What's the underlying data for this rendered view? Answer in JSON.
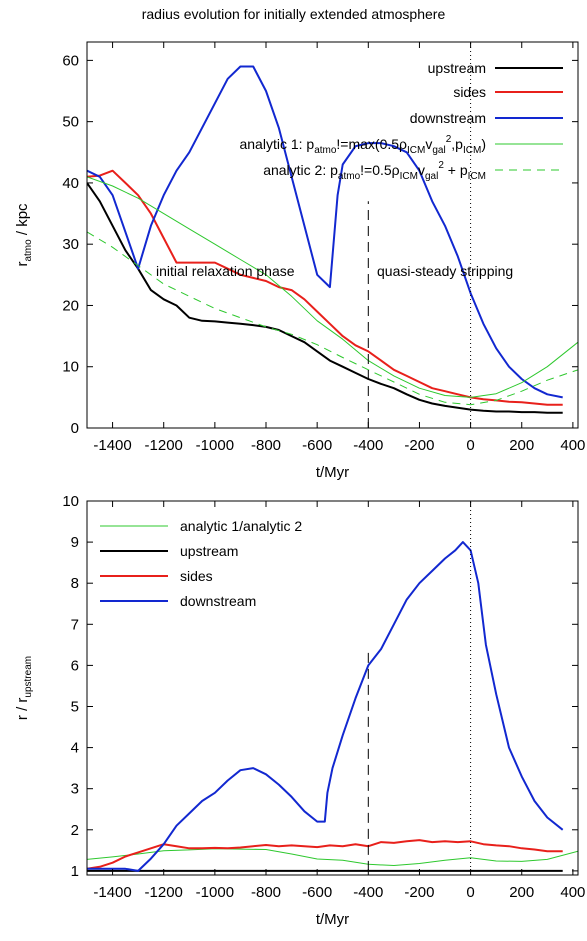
{
  "chart_data": [
    {
      "type": "line",
      "title": "radius evolution for initially extended atmosphere",
      "xlabel": "t/Myr",
      "ylabel": "r_atmo / kpc",
      "ylabel_base": "r",
      "ylabel_sub": "atmo",
      "ylabel_rest": " / kpc",
      "xlim": [
        -1500,
        420
      ],
      "ylim": [
        0,
        63
      ],
      "xticks": [
        -1400,
        -1200,
        -1000,
        -800,
        -600,
        -400,
        -200,
        0,
        200,
        400
      ],
      "xtick_labels": [
        "-1400",
        "-1200",
        "-1000",
        "-800",
        "-600",
        "-400",
        "-200",
        "0",
        "200",
        "400"
      ],
      "yticks": [
        0,
        10,
        20,
        30,
        40,
        50,
        60
      ],
      "ytick_labels": [
        "0",
        "10",
        "20",
        "30",
        "40",
        "50",
        "60"
      ],
      "grid": false,
      "legend_position": "top-right",
      "vlines": [
        {
          "x": -400,
          "y": [
            0,
            37
          ],
          "style": "dashed"
        },
        {
          "x": 0,
          "y": [
            0,
            63
          ],
          "style": "dotted"
        }
      ],
      "annotations": [
        "initial relaxation phase",
        "quasi-steady stripping"
      ],
      "series": [
        {
          "name": "upstream",
          "color": "#000000",
          "width": 2,
          "dash": "",
          "x": [
            -1500,
            -1450,
            -1400,
            -1350,
            -1300,
            -1250,
            -1200,
            -1150,
            -1100,
            -1050,
            -1000,
            -950,
            -900,
            -850,
            -800,
            -750,
            -700,
            -650,
            -600,
            -550,
            -500,
            -450,
            -400,
            -350,
            -300,
            -250,
            -200,
            -150,
            -100,
            -50,
            0,
            50,
            100,
            150,
            200,
            250,
            300,
            360
          ],
          "y": [
            40,
            37,
            33,
            29,
            26,
            22.5,
            21,
            20,
            18,
            17.5,
            17.4,
            17.2,
            17,
            16.8,
            16.5,
            16,
            15,
            14,
            12.5,
            11,
            10,
            9,
            8,
            7.2,
            6.5,
            5.5,
            4.6,
            4,
            3.6,
            3.3,
            3,
            2.8,
            2.7,
            2.7,
            2.6,
            2.6,
            2.5,
            2.5
          ]
        },
        {
          "name": "sides",
          "color": "#e8201b",
          "width": 2,
          "dash": "",
          "x": [
            -1500,
            -1450,
            -1400,
            -1350,
            -1300,
            -1250,
            -1200,
            -1150,
            -1100,
            -1050,
            -1000,
            -950,
            -900,
            -850,
            -800,
            -750,
            -700,
            -650,
            -600,
            -550,
            -500,
            -450,
            -400,
            -350,
            -300,
            -250,
            -200,
            -150,
            -100,
            -50,
            0,
            50,
            100,
            150,
            200,
            250,
            300,
            360
          ],
          "y": [
            41,
            41.2,
            42,
            40,
            38,
            35,
            31,
            27,
            27,
            27,
            27,
            26,
            25,
            24.5,
            24,
            23,
            22.5,
            21,
            19,
            17,
            15,
            13.5,
            12.5,
            11,
            9.5,
            8.5,
            7.5,
            6.5,
            6,
            5.5,
            5,
            4.7,
            4.5,
            4.3,
            4.2,
            4,
            3.8,
            3.8
          ]
        },
        {
          "name": "downstream",
          "color": "#1228d0",
          "width": 2,
          "dash": "",
          "x": [
            -1500,
            -1450,
            -1400,
            -1350,
            -1300,
            -1250,
            -1200,
            -1150,
            -1100,
            -1050,
            -1000,
            -950,
            -900,
            -850,
            -800,
            -750,
            -700,
            -650,
            -600,
            -550,
            -520,
            -500,
            -450,
            -400,
            -350,
            -300,
            -250,
            -200,
            -150,
            -100,
            -50,
            0,
            50,
            100,
            150,
            200,
            250,
            300,
            360
          ],
          "y": [
            42,
            41,
            38,
            32,
            26,
            33,
            38,
            42,
            45,
            49,
            53,
            57,
            59,
            59,
            55,
            49,
            41,
            33,
            25,
            23,
            38,
            43,
            46,
            46.5,
            46.5,
            46,
            45,
            42,
            37,
            33,
            28,
            22,
            17,
            13,
            10,
            8,
            6.5,
            5.5,
            5
          ]
        },
        {
          "name": "analytic 1: p_atmo!=max(0.5ρ_ICM v_gal^2, p_ICM)",
          "color": "#2ec82e",
          "width": 1,
          "dash": "",
          "x": [
            -1500,
            -1400,
            -1300,
            -1200,
            -1100,
            -1000,
            -900,
            -800,
            -700,
            -600,
            -500,
            -400,
            -300,
            -200,
            -100,
            0,
            100,
            200,
            300,
            420
          ],
          "y": [
            41,
            39.5,
            37.5,
            35,
            32.5,
            30,
            27.5,
            25,
            21.5,
            17.5,
            14.5,
            11,
            8.5,
            6.5,
            5.3,
            5,
            5.6,
            7.4,
            10,
            14
          ]
        },
        {
          "name": "analytic 2: p_atmo!=0.5ρ_ICM v_gal^2 + p_ICM",
          "color": "#2ec82e",
          "width": 1,
          "dash": "8,6",
          "x": [
            -1500,
            -1400,
            -1300,
            -1200,
            -1100,
            -1000,
            -900,
            -800,
            -700,
            -600,
            -500,
            -400,
            -300,
            -200,
            -100,
            0,
            100,
            200,
            300,
            420
          ],
          "y": [
            32,
            29.5,
            26.5,
            23.5,
            21.5,
            19.5,
            18,
            16.5,
            15.3,
            13.6,
            11.5,
            9.5,
            7.5,
            5.5,
            4.2,
            3.8,
            4.5,
            6,
            7.8,
            9.5
          ]
        }
      ]
    },
    {
      "type": "line",
      "title": "",
      "xlabel": "t/Myr",
      "ylabel": "r / r_upstream",
      "ylabel_base": "r / r",
      "ylabel_sub": "upstream",
      "ylabel_rest": "",
      "xlim": [
        -1500,
        420
      ],
      "ylim": [
        0.9,
        10
      ],
      "xticks": [
        -1400,
        -1200,
        -1000,
        -800,
        -600,
        -400,
        -200,
        0,
        200,
        400
      ],
      "xtick_labels": [
        "-1400",
        "-1200",
        "-1000",
        "-800",
        "-600",
        "-400",
        "-200",
        "0",
        "200",
        "400"
      ],
      "yticks": [
        1,
        2,
        3,
        4,
        5,
        6,
        7,
        8,
        9,
        10
      ],
      "ytick_labels": [
        "1",
        "2",
        "3",
        "4",
        "5",
        "6",
        "7",
        "8",
        "9",
        "10"
      ],
      "grid": false,
      "legend_position": "top-left",
      "vlines": [
        {
          "x": -400,
          "y": [
            1,
            6.4
          ],
          "style": "dashed"
        },
        {
          "x": 0,
          "y": [
            0.9,
            10
          ],
          "style": "dotted"
        }
      ],
      "series": [
        {
          "name": "analytic 1/analytic 2",
          "color": "#2ec82e",
          "width": 1,
          "dash": "",
          "x": [
            -1500,
            -1400,
            -1300,
            -1200,
            -1100,
            -1000,
            -900,
            -800,
            -700,
            -600,
            -500,
            -400,
            -300,
            -200,
            -100,
            0,
            100,
            200,
            300,
            420
          ],
          "y": [
            1.28,
            1.34,
            1.41,
            1.49,
            1.51,
            1.54,
            1.53,
            1.52,
            1.41,
            1.29,
            1.26,
            1.16,
            1.13,
            1.18,
            1.26,
            1.32,
            1.24,
            1.23,
            1.28,
            1.48
          ]
        },
        {
          "name": "upstream",
          "color": "#000000",
          "width": 2,
          "dash": "",
          "x": [
            -1500,
            360
          ],
          "y": [
            1,
            1
          ]
        },
        {
          "name": "sides",
          "color": "#e8201b",
          "width": 2,
          "dash": "",
          "x": [
            -1500,
            -1450,
            -1400,
            -1350,
            -1300,
            -1250,
            -1200,
            -1150,
            -1100,
            -1050,
            -1000,
            -950,
            -900,
            -850,
            -800,
            -750,
            -700,
            -650,
            -600,
            -550,
            -500,
            -450,
            -400,
            -350,
            -300,
            -250,
            -200,
            -150,
            -100,
            -50,
            0,
            50,
            100,
            150,
            200,
            250,
            300,
            360
          ],
          "y": [
            1.05,
            1.1,
            1.2,
            1.35,
            1.45,
            1.55,
            1.65,
            1.6,
            1.55,
            1.55,
            1.56,
            1.55,
            1.57,
            1.6,
            1.63,
            1.6,
            1.62,
            1.6,
            1.58,
            1.62,
            1.6,
            1.65,
            1.6,
            1.7,
            1.68,
            1.72,
            1.75,
            1.7,
            1.72,
            1.7,
            1.72,
            1.65,
            1.62,
            1.6,
            1.55,
            1.52,
            1.48,
            1.48
          ]
        },
        {
          "name": "downstream",
          "color": "#1228d0",
          "width": 2,
          "dash": "",
          "x": [
            -1500,
            -1450,
            -1400,
            -1350,
            -1300,
            -1250,
            -1200,
            -1150,
            -1100,
            -1050,
            -1000,
            -950,
            -900,
            -850,
            -800,
            -750,
            -700,
            -650,
            -600,
            -570,
            -560,
            -540,
            -500,
            -450,
            -400,
            -350,
            -300,
            -250,
            -200,
            -150,
            -100,
            -60,
            -30,
            0,
            30,
            60,
            100,
            150,
            200,
            250,
            300,
            360
          ],
          "y": [
            1.05,
            1.05,
            1.05,
            1.05,
            1.0,
            1.3,
            1.65,
            2.1,
            2.4,
            2.7,
            2.9,
            3.2,
            3.45,
            3.5,
            3.35,
            3.1,
            2.8,
            2.45,
            2.2,
            2.2,
            2.9,
            3.5,
            4.3,
            5.2,
            6.0,
            6.4,
            7.0,
            7.6,
            8.0,
            8.3,
            8.6,
            8.8,
            9.0,
            8.8,
            8.0,
            6.5,
            5.3,
            4.0,
            3.3,
            2.7,
            2.3,
            2.0
          ]
        }
      ]
    }
  ]
}
